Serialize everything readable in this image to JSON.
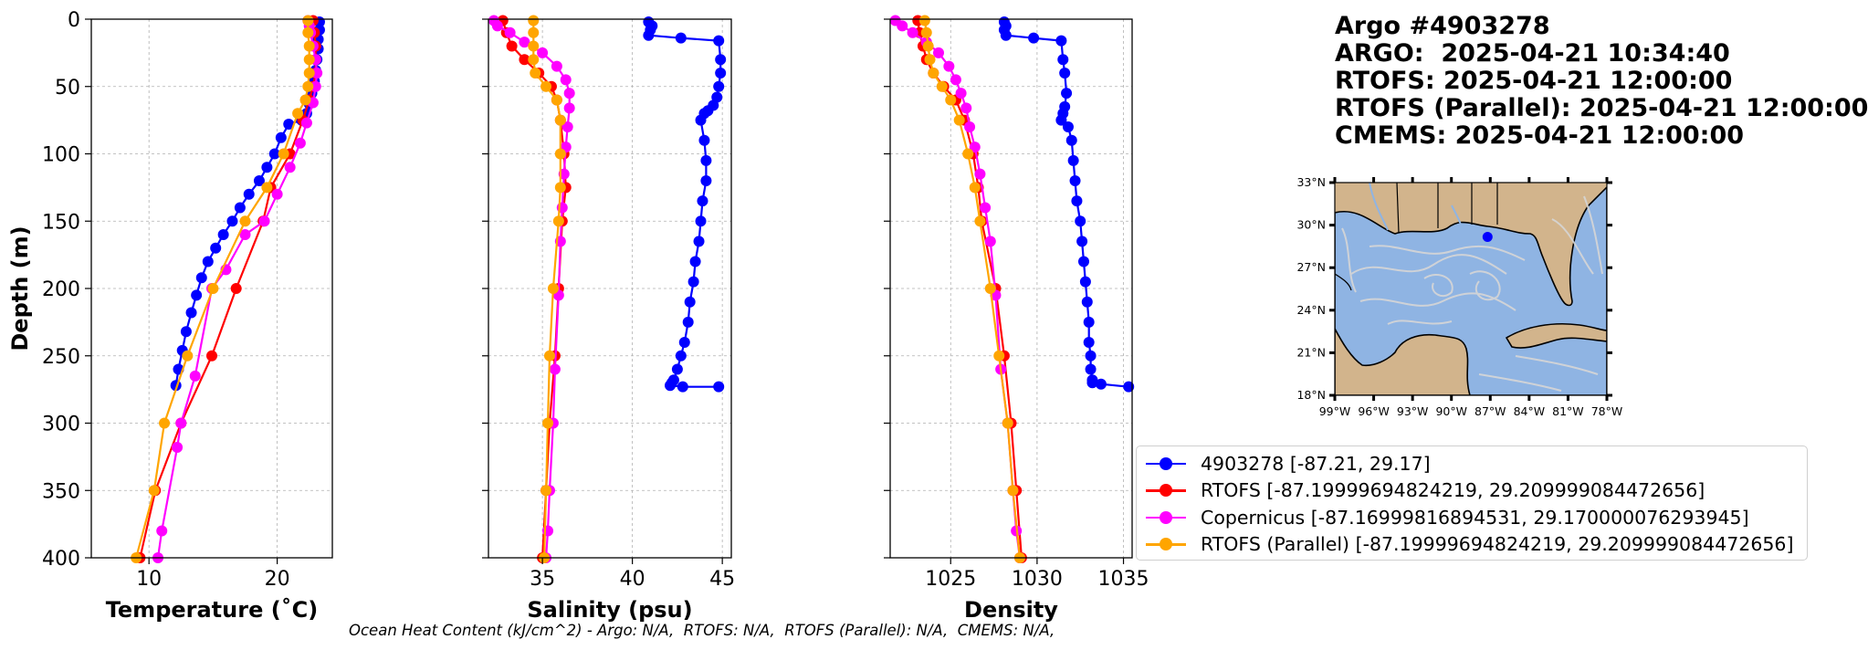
{
  "title": {
    "line1": "Argo #4903278",
    "line2": "ARGO:  2025-04-21 10:34:40",
    "line3": "RTOFS: 2025-04-21 12:00:00",
    "line4": "RTOFS (Parallel): 2025-04-21 12:00:00",
    "line5": "CMEMS: 2025-04-21 12:00:00"
  },
  "footer": "Ocean Heat Content (kJ/cm^2) - Argo: N/A,  RTOFS: N/A,  RTOFS (Parallel): N/A,  CMEMS: N/A,",
  "legend": [
    {
      "label": "4903278 [-87.21, 29.17]",
      "color": "#0000ff"
    },
    {
      "label": "RTOFS [-87.19999694824219, 29.209999084472656]",
      "color": "#ff0000"
    },
    {
      "label": "Copernicus [-87.16999816894531, 29.170000076293945]",
      "color": "#ff00ff"
    },
    {
      "label": "RTOFS (Parallel) [-87.19999694824219, 29.209999084472656]",
      "color": "#ffa500"
    }
  ],
  "map": {
    "lat_ticks": [
      "33°N",
      "30°N",
      "27°N",
      "24°N",
      "21°N",
      "18°N"
    ],
    "lon_ticks": [
      "99°W",
      "96°W",
      "93°W",
      "90°W",
      "87°W",
      "84°W",
      "81°W",
      "78°W"
    ],
    "float_lon": -87.21,
    "float_lat": 29.17,
    "lon_range": [
      -99,
      -78
    ],
    "lat_range": [
      18,
      33
    ],
    "colors": {
      "land": "#d2b48c",
      "ocean": "#8fb4e3",
      "streamlines": "#d6d6d6",
      "float": "#0000ff"
    }
  },
  "chart_data": [
    {
      "type": "line",
      "xlabel": "Temperature (˚C)",
      "ylabel": "Depth (m)",
      "xlim": [
        5.5,
        24.3
      ],
      "ylim": [
        400,
        0
      ],
      "xticks": [
        10,
        20
      ],
      "yticks": [
        0,
        50,
        100,
        150,
        200,
        250,
        300,
        350,
        400
      ],
      "grid": true,
      "series": [
        {
          "name": "4903278 [-87.21, 29.17]",
          "color": "#0000ff",
          "x": [
            23.3,
            23.3,
            23.2,
            23.2,
            23.1,
            23.0,
            22.9,
            22.7,
            22.5,
            22.3,
            21.9,
            20.9,
            20.3,
            19.8,
            19.2,
            18.6,
            17.8,
            17.1,
            16.5,
            15.8,
            15.2,
            14.6,
            14.1,
            13.7,
            13.3,
            12.9,
            12.6,
            12.3,
            12.1
          ],
          "y": [
            2,
            8,
            15,
            22,
            30,
            38,
            46,
            55,
            63,
            70,
            75,
            78,
            88,
            100,
            110,
            120,
            130,
            140,
            150,
            160,
            170,
            180,
            192,
            205,
            218,
            232,
            246,
            260,
            272
          ]
        },
        {
          "name": "RTOFS [-87.19999694824219, 29.209999084472656]",
          "color": "#ff0000",
          "x": [
            22.8,
            22.9,
            23.0,
            23.0,
            23.0,
            22.8,
            22.5,
            22.0,
            21.0,
            19.5,
            18.9,
            16.8,
            14.9,
            12.5,
            10.5,
            9.3
          ],
          "y": [
            1,
            10,
            20,
            30,
            40,
            50,
            60,
            75,
            100,
            125,
            150,
            200,
            250,
            300,
            350,
            400
          ]
        },
        {
          "name": "Copernicus [-87.16999816894531, 29.170000076293945]",
          "color": "#ff00ff",
          "x": [
            22.4,
            22.5,
            22.6,
            22.8,
            23.0,
            23.1,
            23.0,
            22.8,
            22.3,
            21.8,
            21.0,
            20.0,
            19.0,
            17.5,
            16.0,
            14.9,
            13.6,
            12.5,
            12.2,
            11.0,
            10.7
          ],
          "y": [
            1,
            5,
            10,
            20,
            30,
            40,
            50,
            62,
            77,
            92,
            110,
            130,
            150,
            160,
            186,
            200,
            265,
            300,
            318,
            380,
            400
          ]
        },
        {
          "name": "RTOFS (Parallel) [-87.19999694824219, 29.209999084472656]",
          "color": "#ffa500",
          "x": [
            22.4,
            22.4,
            22.5,
            22.5,
            22.5,
            22.4,
            22.2,
            21.6,
            20.5,
            19.2,
            17.5,
            15.0,
            13.0,
            11.2,
            10.4,
            9.0
          ],
          "y": [
            1,
            10,
            20,
            30,
            40,
            50,
            60,
            70,
            100,
            125,
            150,
            200,
            250,
            300,
            350,
            400
          ]
        }
      ]
    },
    {
      "type": "line",
      "xlabel": "Salinity (psu)",
      "xlim": [
        32,
        45.5
      ],
      "ylim": [
        400,
        0
      ],
      "xticks": [
        35,
        40,
        45
      ],
      "yticks": [
        0,
        50,
        100,
        150,
        200,
        250,
        300,
        350,
        400
      ],
      "grid": true,
      "series": [
        {
          "name": "4903278 [-87.21, 29.17]",
          "color": "#0000ff",
          "x": [
            40.9,
            41.1,
            41.0,
            40.9,
            42.7,
            44.8,
            44.9,
            44.9,
            44.8,
            44.7,
            44.5,
            44.2,
            44.0,
            43.8,
            44.0,
            44.1,
            44.1,
            43.9,
            43.8,
            43.7,
            43.5,
            43.4,
            43.2,
            43.1,
            42.9,
            42.7,
            42.5,
            42.3,
            42.2,
            42.1,
            42.8,
            44.8
          ],
          "y": [
            2,
            5,
            8,
            12,
            14,
            16,
            30,
            40,
            50,
            58,
            64,
            68,
            70,
            75,
            90,
            105,
            120,
            135,
            150,
            165,
            180,
            195,
            210,
            225,
            240,
            250,
            260,
            268,
            270,
            272,
            273,
            273
          ]
        },
        {
          "name": "RTOFS [-87.19999694824219, 29.209999084472656]",
          "color": "#ff0000",
          "x": [
            32.8,
            33.0,
            33.3,
            34.0,
            34.8,
            35.5,
            35.8,
            36.0,
            36.2,
            36.3,
            36.1,
            35.9,
            35.7,
            35.4,
            35.2,
            35.0
          ],
          "y": [
            1,
            10,
            20,
            30,
            40,
            50,
            60,
            75,
            100,
            125,
            150,
            200,
            250,
            300,
            350,
            400
          ]
        },
        {
          "name": "Copernicus [-87.16999816894531, 29.170000076293945]",
          "color": "#ff00ff",
          "x": [
            32.3,
            32.5,
            33.2,
            34.0,
            35.0,
            35.8,
            36.3,
            36.5,
            36.5,
            36.4,
            36.3,
            36.2,
            36.1,
            36.0,
            35.9,
            35.7,
            35.6,
            35.4,
            35.3,
            35.2
          ],
          "y": [
            1,
            5,
            10,
            17,
            25,
            35,
            45,
            55,
            66,
            80,
            95,
            115,
            140,
            165,
            205,
            260,
            300,
            350,
            380,
            400
          ]
        },
        {
          "name": "RTOFS (Parallel) [-87.19999694824219, 29.209999084472656]",
          "color": "#ffa500",
          "x": [
            34.5,
            34.5,
            34.5,
            34.5,
            34.6,
            35.2,
            35.8,
            36.0,
            36.0,
            36.0,
            35.9,
            35.6,
            35.4,
            35.3,
            35.2,
            35.1
          ],
          "y": [
            1,
            10,
            20,
            30,
            40,
            50,
            60,
            75,
            100,
            125,
            150,
            200,
            250,
            300,
            350,
            400
          ]
        }
      ]
    },
    {
      "type": "line",
      "xlabel": "Density",
      "xlim": [
        1021.5,
        1035.5
      ],
      "ylim": [
        400,
        0
      ],
      "xticks": [
        1025,
        1030,
        1035
      ],
      "yticks": [
        0,
        50,
        100,
        150,
        200,
        250,
        300,
        350,
        400
      ],
      "grid": true,
      "series": [
        {
          "name": "4903278 [-87.21, 29.17]",
          "color": "#0000ff",
          "x": [
            1028.1,
            1028.2,
            1028.1,
            1028.2,
            1029.8,
            1031.4,
            1031.5,
            1031.6,
            1031.7,
            1031.6,
            1031.5,
            1031.4,
            1031.8,
            1032.0,
            1032.1,
            1032.2,
            1032.3,
            1032.5,
            1032.6,
            1032.7,
            1032.8,
            1032.9,
            1033.0,
            1033.0,
            1033.1,
            1033.1,
            1033.2,
            1033.2,
            1033.7,
            1035.3
          ],
          "y": [
            2,
            5,
            8,
            12,
            14,
            16,
            30,
            40,
            55,
            65,
            70,
            75,
            80,
            90,
            105,
            120,
            135,
            150,
            165,
            180,
            195,
            210,
            225,
            240,
            250,
            260,
            268,
            270,
            271,
            273
          ]
        },
        {
          "name": "RTOFS [-87.19999694824219, 29.209999084472656]",
          "color": "#ff0000",
          "x": [
            1023.1,
            1023.2,
            1023.4,
            1023.6,
            1024.0,
            1024.6,
            1025.3,
            1025.8,
            1026.3,
            1026.6,
            1026.8,
            1027.6,
            1028.1,
            1028.5,
            1028.8,
            1029.1
          ],
          "y": [
            1,
            10,
            20,
            30,
            40,
            50,
            60,
            75,
            100,
            125,
            150,
            200,
            250,
            300,
            350,
            400
          ]
        },
        {
          "name": "Copernicus [-87.16999816894531, 29.170000076293945]",
          "color": "#ff00ff",
          "x": [
            1021.8,
            1022.2,
            1022.8,
            1023.6,
            1024.3,
            1024.9,
            1025.3,
            1025.6,
            1025.9,
            1026.1,
            1026.4,
            1026.7,
            1027.0,
            1027.3,
            1027.6,
            1027.9,
            1028.3,
            1028.6,
            1028.8,
            1029.0
          ],
          "y": [
            1,
            5,
            10,
            17,
            25,
            35,
            45,
            55,
            66,
            80,
            95,
            115,
            140,
            165,
            205,
            260,
            300,
            350,
            380,
            400
          ]
        },
        {
          "name": "RTOFS (Parallel) [-87.19999694824219, 29.209999084472656]",
          "color": "#ffa500",
          "x": [
            1023.5,
            1023.6,
            1023.7,
            1023.8,
            1024.0,
            1024.5,
            1025.0,
            1025.5,
            1026.0,
            1026.4,
            1026.7,
            1027.3,
            1027.8,
            1028.3,
            1028.6,
            1029.0
          ],
          "y": [
            1,
            10,
            20,
            30,
            40,
            50,
            60,
            75,
            100,
            125,
            150,
            200,
            250,
            300,
            350,
            400
          ]
        }
      ]
    }
  ]
}
